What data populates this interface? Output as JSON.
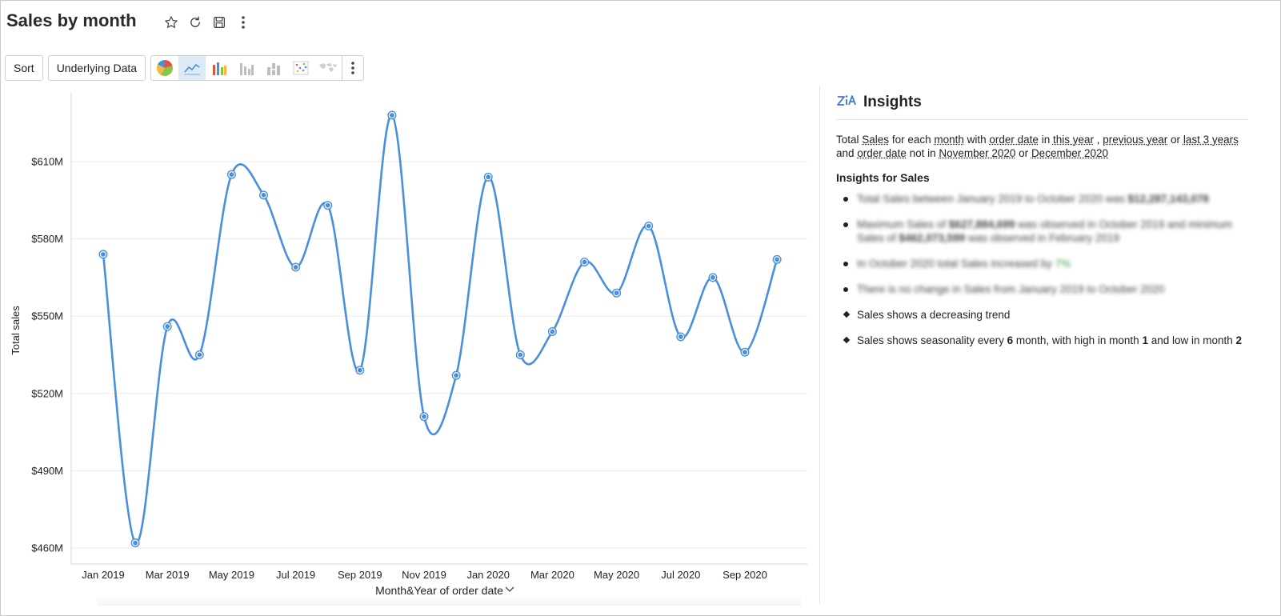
{
  "page": {
    "title": "Sales by month",
    "icons": [
      "star-icon",
      "refresh-icon",
      "save-icon",
      "more-vertical-icon"
    ]
  },
  "toolbar": {
    "sort_label": "Sort",
    "underlying_label": "Underlying Data",
    "chart_types": [
      "pie-chart-icon",
      "line-chart-icon",
      "bar-chart-icon",
      "column-chart-icon",
      "stacked-chart-icon",
      "scatter-chart-icon",
      "map-chart-icon"
    ],
    "active_chart_type": "line-chart-icon"
  },
  "colors": {
    "line": "#4a8fdc",
    "grid": "#ebebeb",
    "active_tab": "#dce9f6",
    "accent_icon": "#3b79c9"
  },
  "chart_data": {
    "type": "line",
    "xlabel": "Month&Year of order date",
    "ylabel": "Total sales",
    "x": [
      "Jan 2019",
      "Feb 2019",
      "Mar 2019",
      "Apr 2019",
      "May 2019",
      "Jun 2019",
      "Jul 2019",
      "Aug 2019",
      "Sep 2019",
      "Oct 2019",
      "Nov 2019",
      "Dec 2019",
      "Jan 2020",
      "Feb 2020",
      "Mar 2020",
      "Apr 2020",
      "May 2020",
      "Jun 2020",
      "Jul 2020",
      "Aug 2020",
      "Sep 2020",
      "Oct 2020"
    ],
    "x_tick_labels": [
      "Jan 2019",
      "Mar 2019",
      "May 2019",
      "Jul 2019",
      "Sep 2019",
      "Nov 2019",
      "Jan 2020",
      "Mar 2020",
      "May 2020",
      "Jul 2020",
      "Sep 2020"
    ],
    "series": [
      {
        "values": [
          574,
          462,
          546,
          535,
          605,
          597,
          569,
          593,
          529,
          628,
          511,
          527,
          604,
          535,
          544,
          571,
          559,
          585,
          542,
          565,
          536,
          572
        ]
      }
    ],
    "y_ticks": [
      460,
      490,
      520,
      550,
      580,
      610
    ],
    "y_tick_labels": [
      "$460M",
      "$490M",
      "$520M",
      "$550M",
      "$580M",
      "$610M"
    ],
    "ylim": [
      455,
      635
    ],
    "grid": true,
    "legend": "none"
  },
  "insights": {
    "title": "Insights",
    "desc": {
      "p1": "Total ",
      "l1": "Sales",
      "p2": " for each ",
      "l2": "month",
      "p3": " with ",
      "l3": "order date",
      "p4": " in ",
      "l4": "this year",
      "p5": " , ",
      "l5": "previous year",
      "p6": " or ",
      "l6": "last 3 years",
      "p7": " and ",
      "l7": "order date",
      "p8": " not in ",
      "l8": "November 2020",
      "p9": " or ",
      "l9": "December 2020"
    },
    "subtitle": "Insights for Sales",
    "items": {
      "i1a": "Total Sales between January 2019 to October 2020 was ",
      "i1b": "$12,287,143,078",
      "i2a": "Maximum Sales of ",
      "i2b": "$627,884,699",
      "i2c": " was observed in October 2019 and minimum Sales of ",
      "i2d": "$462,073,599",
      "i2e": " was observed in February 2019",
      "i3a": "In October 2020 total Sales increased by ",
      "i3b": "7%",
      "i4": "There is no change in Sales from January 2019 to October 2020",
      "i5": "Sales shows a decreasing trend",
      "i6a": "Sales shows seasonality every ",
      "i6b": "6",
      "i6c": " month, with high in month ",
      "i6d": "1",
      "i6e": " and low in month ",
      "i6f": "2"
    }
  }
}
